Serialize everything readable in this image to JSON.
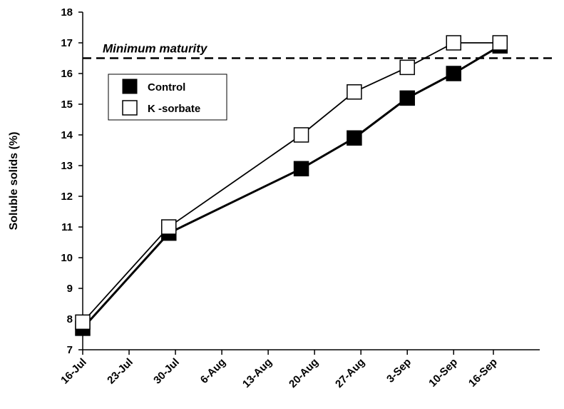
{
  "chart_data": {
    "type": "line",
    "ylabel": "Soluble solids (%)",
    "xlabel": "",
    "ylim": [
      7,
      18
    ],
    "yticks": [
      7,
      8,
      9,
      10,
      11,
      12,
      13,
      14,
      15,
      16,
      17,
      18
    ],
    "x_tick_labels": [
      "16-Jul",
      "23-Jul",
      "30-Jul",
      "6-Aug",
      "13-Aug",
      "20-Aug",
      "27-Aug",
      "3-Sep",
      "10-Sep",
      "16-Sep"
    ],
    "x_tick_days": [
      0,
      7,
      14,
      21,
      28,
      35,
      42,
      49,
      56,
      62
    ],
    "series": [
      {
        "name": "Control",
        "marker": "filled-square",
        "color": "#000000",
        "x_days": [
          0,
          13,
          33,
          41,
          49,
          56,
          63
        ],
        "values": [
          7.7,
          10.8,
          12.9,
          13.9,
          15.2,
          16.0,
          16.9
        ]
      },
      {
        "name": "K -sorbate",
        "marker": "open-square",
        "color": "#000000",
        "x_days": [
          0,
          13,
          33,
          41,
          49,
          56,
          63
        ],
        "values": [
          7.9,
          11.0,
          14.0,
          15.4,
          16.2,
          17.0,
          17.0
        ]
      }
    ],
    "reference_line": {
      "value": 16.5,
      "style": "dashed",
      "label": "Minimum maturity"
    },
    "legend_position": "upper-left",
    "grid": false
  }
}
